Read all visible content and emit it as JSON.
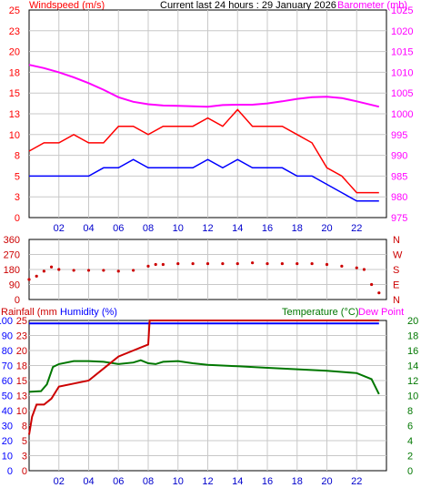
{
  "header": {
    "left_label": "Windspeed (m/s)",
    "center_label": "Current last 24 hours : 29 January 2026",
    "right_label": "Barometer (mb)"
  },
  "colors": {
    "wind_high": "#ff0000",
    "wind_avg": "#0000ff",
    "barometer": "#ff00ff",
    "direction": "#cc0000",
    "rainfall": "#cc0000",
    "humidity": "#0000ff",
    "temperature": "#007700",
    "dewpoint": "#ff00ff",
    "grid": "#c8c8c8",
    "frame": "#000000"
  },
  "panel3_labels": {
    "rainfall": "Rainfall (mm",
    "humidity": "Humidity (%)",
    "temperature": "Temperature (°C)",
    "dewpoint": "Dew Point"
  },
  "chart_data": [
    {
      "type": "line",
      "panel": "wind_barometer",
      "x_ticks": [
        "02",
        "04",
        "06",
        "08",
        "10",
        "12",
        "14",
        "16",
        "18",
        "20",
        "22"
      ],
      "x_range_hours": [
        0,
        24
      ],
      "left_axis": {
        "label": "Windspeed (m/s)",
        "ticks": [
          "0",
          "3",
          "5",
          "8",
          "10",
          "13",
          "15",
          "18",
          "20",
          "23",
          "25"
        ],
        "ylim": [
          0,
          25
        ]
      },
      "right_axis": {
        "label": "Barometer (mb)",
        "ticks": [
          "975",
          "980",
          "985",
          "990",
          "995",
          "1000",
          "1005",
          "1010",
          "1015",
          "1020",
          "1025"
        ],
        "ylim": [
          975,
          1025
        ]
      },
      "grid": true,
      "series": [
        {
          "name": "Barometer (mb)",
          "axis": "right",
          "x": [
            0,
            1,
            2,
            3,
            4,
            5,
            6,
            7,
            8,
            9,
            10,
            11,
            12,
            13,
            14,
            15,
            16,
            17,
            18,
            19,
            20,
            21,
            22,
            23.5
          ],
          "values": [
            1011.8,
            1011.0,
            1010.0,
            1008.8,
            1007.4,
            1005.8,
            1004.0,
            1002.9,
            1002.3,
            1002.0,
            1001.9,
            1001.8,
            1001.7,
            1002.1,
            1002.2,
            1002.2,
            1002.5,
            1003.0,
            1003.6,
            1004.0,
            1004.1,
            1003.8,
            1003.0,
            1001.7
          ]
        },
        {
          "name": "Windspeed (m/s) high",
          "axis": "left",
          "x": [
            0,
            1,
            2,
            3,
            4,
            5,
            6,
            7,
            8,
            9,
            10,
            11,
            12,
            13,
            14,
            15,
            16,
            17,
            18,
            19,
            20,
            21,
            22,
            23.5
          ],
          "values": [
            8,
            9,
            9,
            10,
            9,
            9,
            11,
            11,
            10,
            11,
            11,
            11,
            12,
            11,
            13,
            11,
            11,
            11,
            10,
            9,
            6,
            5,
            3,
            3
          ]
        },
        {
          "name": "Windspeed (m/s) average",
          "axis": "left",
          "x": [
            0,
            1,
            2,
            3,
            4,
            5,
            6,
            7,
            8,
            9,
            10,
            11,
            12,
            13,
            14,
            15,
            16,
            17,
            18,
            19,
            20,
            21,
            22,
            23.5
          ],
          "values": [
            5,
            5,
            5,
            5,
            5,
            6,
            6,
            7,
            6,
            6,
            6,
            6,
            7,
            6,
            7,
            6,
            6,
            6,
            5,
            5,
            4,
            3,
            2,
            2
          ]
        }
      ]
    },
    {
      "type": "scatter",
      "panel": "wind_direction",
      "left_axis": {
        "ticks": [
          "0",
          "90",
          "180",
          "270",
          "360"
        ],
        "ylim": [
          0,
          360
        ]
      },
      "right_axis": {
        "ticks": [
          "N",
          "E",
          "S",
          "W",
          "N"
        ]
      },
      "grid": true,
      "x": [
        0,
        0.5,
        1,
        1.5,
        2,
        3,
        4,
        5,
        6,
        7,
        8,
        8.5,
        9,
        10,
        11,
        12,
        13,
        14,
        15,
        16,
        17,
        18,
        19,
        20,
        21,
        22,
        22.5,
        23,
        23.5
      ],
      "values": [
        120,
        140,
        170,
        195,
        180,
        175,
        175,
        175,
        170,
        175,
        200,
        210,
        210,
        215,
        215,
        215,
        215,
        215,
        220,
        215,
        215,
        215,
        215,
        210,
        200,
        190,
        180,
        90,
        40
      ]
    },
    {
      "type": "line",
      "panel": "rain_humidity_temperature",
      "left_axis": {
        "label": "Humidity (%)",
        "ticks": [
          "0",
          "10",
          "20",
          "30",
          "40",
          "50",
          "60",
          "70",
          "80",
          "90",
          "100"
        ],
        "ylim": [
          0,
          100
        ]
      },
      "rain_axis": {
        "label": "Rainfall (mm",
        "ticks": [
          "0",
          "3",
          "5",
          "8",
          "10",
          "13",
          "15",
          "18",
          "20",
          "23",
          "25"
        ],
        "ylim": [
          0,
          25
        ]
      },
      "right_axis": {
        "label": "Temperature (°C)",
        "ticks": [
          "0",
          "2",
          "4",
          "6",
          "8",
          "10",
          "12",
          "14",
          "16",
          "18",
          "20"
        ],
        "ylim": [
          0,
          20
        ]
      },
      "grid": true,
      "series": [
        {
          "name": "Humidity (%)",
          "axis": "left",
          "x": [
            0,
            23.5
          ],
          "values": [
            98,
            98
          ]
        },
        {
          "name": "Temperature (°C)",
          "axis": "right",
          "x": [
            0,
            0.8,
            1.2,
            1.6,
            2,
            3,
            4,
            5,
            6,
            7,
            7.5,
            8,
            8.5,
            9,
            10,
            11,
            12,
            14,
            16,
            18,
            20,
            22,
            23,
            23.5
          ],
          "values": [
            10.5,
            10.6,
            11.5,
            13.8,
            14.2,
            14.6,
            14.6,
            14.5,
            14.2,
            14.4,
            14.7,
            14.3,
            14.2,
            14.5,
            14.6,
            14.3,
            14.1,
            13.9,
            13.7,
            13.5,
            13.3,
            13.0,
            12.2,
            10.2
          ]
        },
        {
          "name": "Rainfall (mm",
          "axis": "rain",
          "x": [
            0,
            0.2,
            0.5,
            1,
            1.5,
            2,
            3,
            4,
            5,
            6,
            7,
            7.5,
            8,
            8.1,
            8.5,
            9,
            10,
            12,
            16,
            20,
            23.5
          ],
          "values": [
            6,
            9,
            11,
            11,
            12,
            14,
            14.5,
            15,
            17,
            19,
            20,
            20.5,
            21,
            25,
            25,
            25,
            25,
            25,
            25,
            25,
            25
          ]
        }
      ]
    }
  ]
}
